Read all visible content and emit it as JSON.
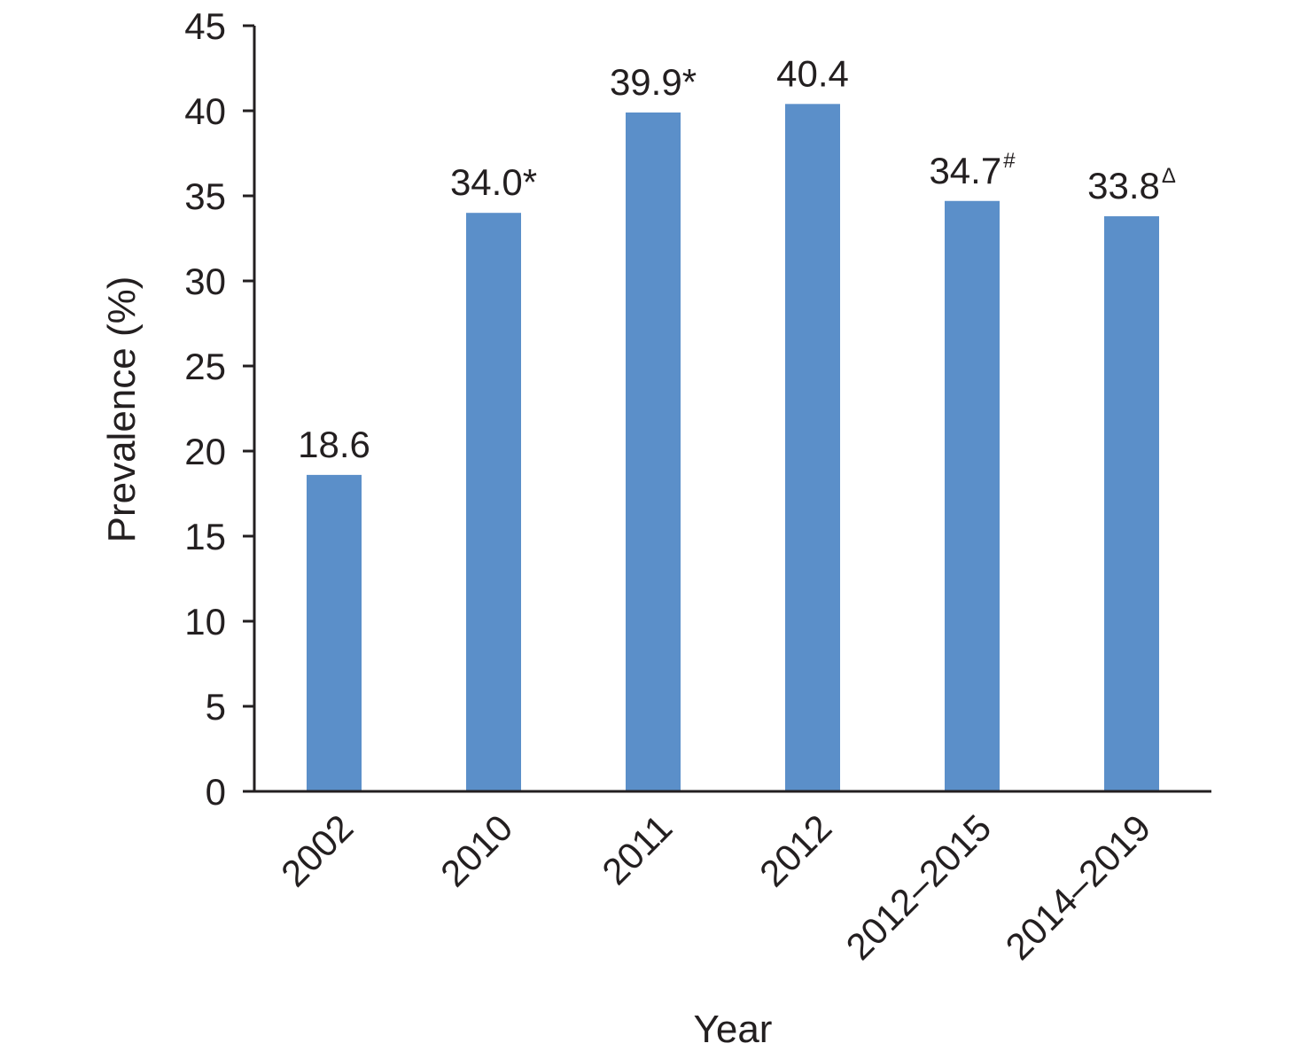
{
  "chart_data": {
    "type": "bar",
    "categories": [
      "2002",
      "2010",
      "2011",
      "2012",
      "2012–2015",
      "2014–2019"
    ],
    "values": [
      18.6,
      34.0,
      39.9,
      40.4,
      34.7,
      33.8
    ],
    "data_labels": [
      {
        "text": "18.6",
        "sup": ""
      },
      {
        "text": "34.0*",
        "sup": ""
      },
      {
        "text": "39.9*",
        "sup": ""
      },
      {
        "text": "40.4",
        "sup": ""
      },
      {
        "text": "34.7",
        "sup": "#"
      },
      {
        "text": "33.8",
        "sup": "Δ"
      }
    ],
    "xlabel": "Year",
    "ylabel": "Prevalence (%)",
    "ylim": [
      0,
      45
    ],
    "yticks": [
      0,
      5,
      10,
      15,
      20,
      25,
      30,
      35,
      40,
      45
    ],
    "bar_color": "#5b8fc9",
    "axis_color": "#231f20",
    "grid": false,
    "legend": "none"
  }
}
